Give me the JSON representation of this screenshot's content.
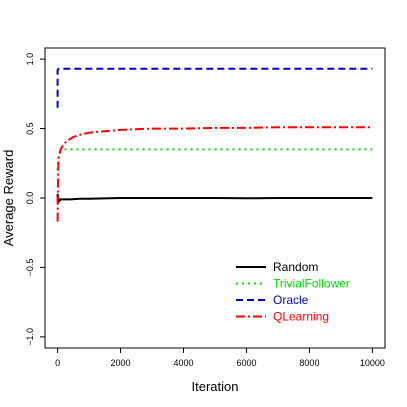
{
  "chart_data": {
    "type": "line",
    "title": "",
    "xlabel": "Iteration",
    "ylabel": "Average Reward",
    "xlim": [
      -400,
      10400
    ],
    "ylim": [
      -1.08,
      1.08
    ],
    "xticks": [
      0,
      2000,
      4000,
      6000,
      8000,
      10000
    ],
    "xtick_labels": [
      "0",
      "2000",
      "4000",
      "6000",
      "8000",
      "10000"
    ],
    "yticks": [
      -1.0,
      -0.5,
      0.0,
      0.5,
      1.0
    ],
    "ytick_labels": [
      "−1.0",
      "−0.5",
      "0.0",
      "0.5",
      "1.0"
    ],
    "grid": false,
    "legend_position": "bottom-right",
    "series": [
      {
        "name": "Random",
        "color": "#000000",
        "dash": "solid",
        "x": [
          0,
          5,
          10,
          20,
          40,
          60,
          100,
          200,
          400,
          700,
          1000,
          2000,
          3000,
          4000,
          5000,
          6000,
          7000,
          8000,
          9000,
          10000
        ],
        "y": [
          0.03,
          -0.04,
          0.02,
          -0.03,
          -0.01,
          -0.02,
          -0.01,
          -0.01,
          -0.01,
          -0.005,
          -0.005,
          0.0,
          0.0,
          0.0,
          0.0,
          -0.002,
          0.0,
          0.0,
          0.0,
          0.0
        ]
      },
      {
        "name": "TrivialFollower",
        "color": "#00dd00",
        "dash": "dotted",
        "x": [
          0,
          20,
          50,
          100,
          200,
          300,
          500,
          1000,
          2000,
          4000,
          6000,
          8000,
          10000
        ],
        "y": [
          0.2,
          0.28,
          0.32,
          0.34,
          0.35,
          0.35,
          0.35,
          0.35,
          0.35,
          0.35,
          0.35,
          0.35,
          0.35
        ]
      },
      {
        "name": "Oracle",
        "color": "#0000cc",
        "dash": "dashed",
        "x": [
          0,
          0,
          30,
          60,
          100,
          500,
          1000,
          2000,
          4000,
          6000,
          8000,
          10000
        ],
        "y": [
          0.65,
          0.92,
          0.93,
          0.93,
          0.93,
          0.93,
          0.93,
          0.93,
          0.93,
          0.93,
          0.93,
          0.93
        ]
      },
      {
        "name": "QLearning",
        "color": "#ff0000",
        "dash": "dotdash",
        "x": [
          0,
          5,
          15,
          30,
          50,
          100,
          200,
          300,
          500,
          800,
          1000,
          1500,
          2000,
          3000,
          4000,
          5000,
          6000,
          7000,
          8000,
          9000,
          10000
        ],
        "y": [
          -0.17,
          0.02,
          0.17,
          0.27,
          0.31,
          0.35,
          0.39,
          0.41,
          0.44,
          0.46,
          0.47,
          0.48,
          0.49,
          0.5,
          0.5,
          0.505,
          0.505,
          0.51,
          0.51,
          0.51,
          0.51
        ]
      }
    ]
  }
}
